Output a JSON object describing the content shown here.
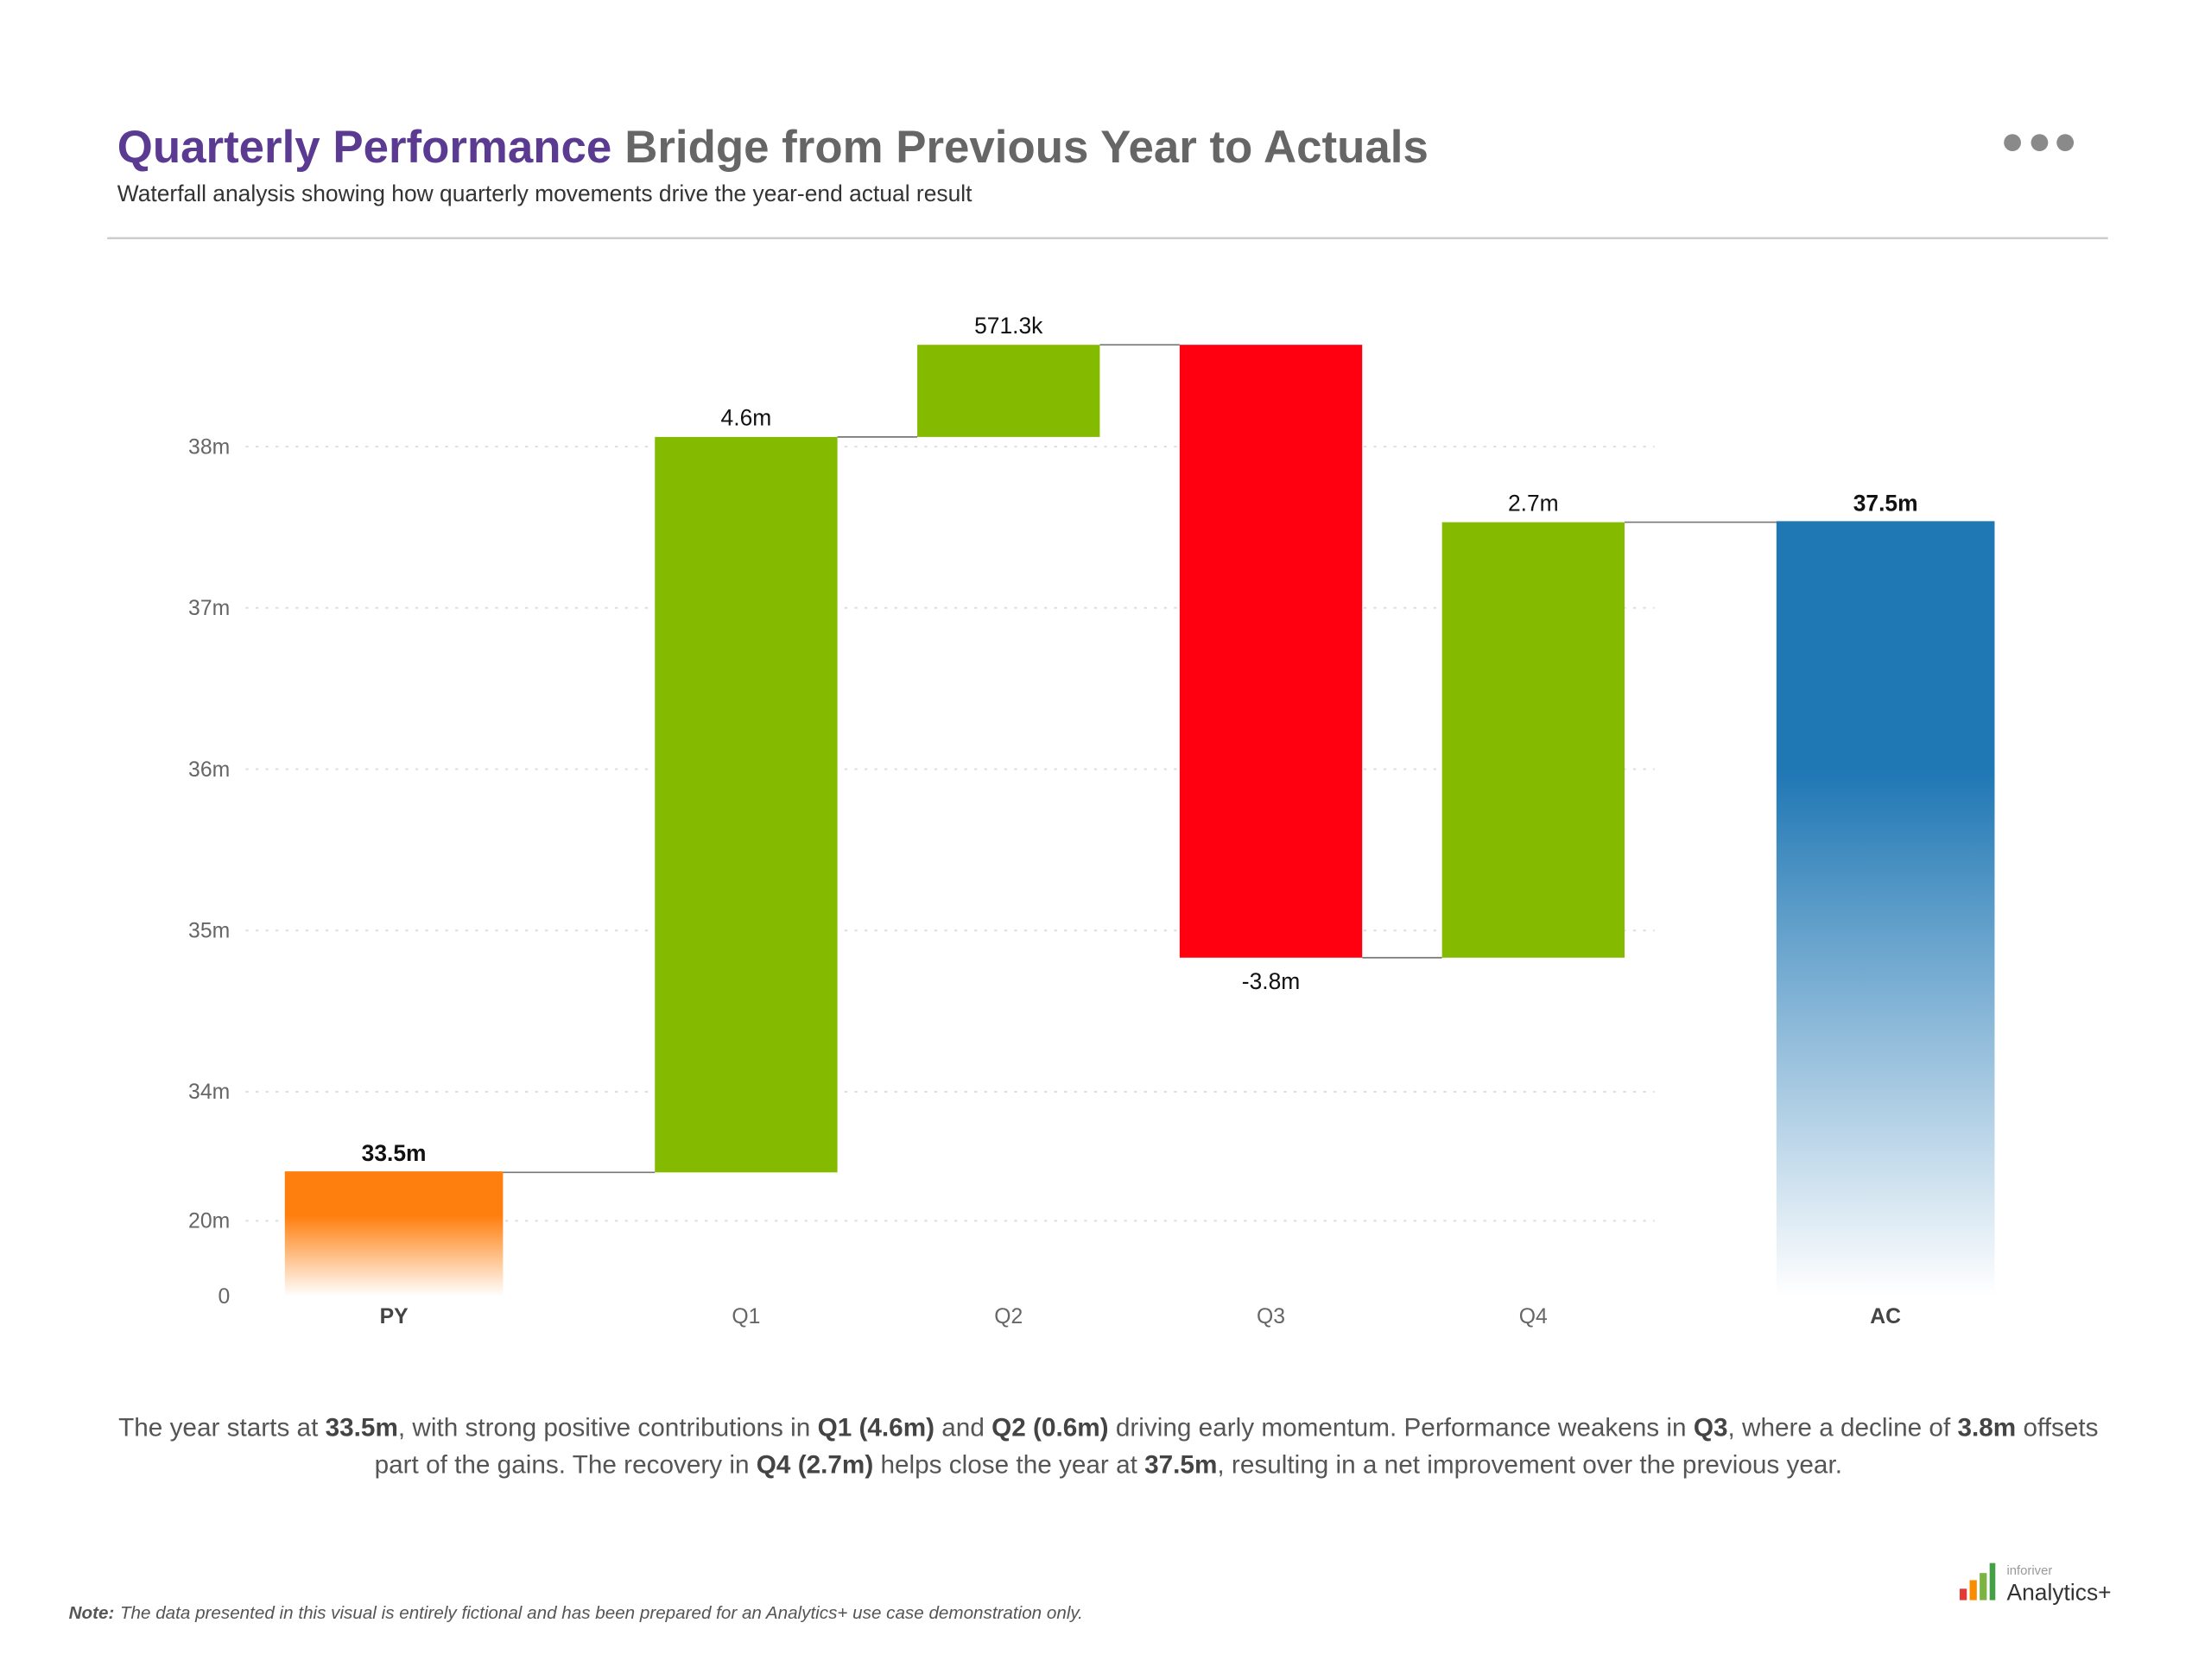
{
  "header": {
    "title_highlight": "Quarterly Performance",
    "title_rest": "Bridge from Previous Year to Actuals",
    "subtitle": "Waterfall analysis showing how quarterly movements drive the year-end actual result"
  },
  "chart_data": {
    "type": "waterfall",
    "categories": [
      "PY",
      "Q1",
      "Q2",
      "Q3",
      "Q4",
      "AC"
    ],
    "values": [
      33500000,
      4560000,
      571300,
      -3800000,
      2700000,
      37531300
    ],
    "value_labels": [
      "33.5m",
      "4.6m",
      "571.3k",
      "-3.8m",
      "2.7m",
      "37.5m"
    ],
    "colors": {
      "start": "#ff7f0e",
      "increase": "#84bb00",
      "decrease": "#ff0011",
      "end": "#1f77b4"
    },
    "ylim": [
      0,
      38700000
    ],
    "axis_break": [
      20000000,
      33200000
    ],
    "yticks": [
      {
        "value": 0,
        "label": "0"
      },
      {
        "value": 20000000,
        "label": "20m"
      },
      {
        "value": 34000000,
        "label": "34m"
      },
      {
        "value": 35000000,
        "label": "35m"
      },
      {
        "value": 36000000,
        "label": "36m"
      },
      {
        "value": 37000000,
        "label": "37m"
      },
      {
        "value": 38000000,
        "label": "38m"
      }
    ],
    "grid": true
  },
  "narrative": [
    {
      "text": "The year starts at ",
      "bold": false
    },
    {
      "text": "33.5m",
      "bold": true
    },
    {
      "text": ", with strong positive contributions in ",
      "bold": false
    },
    {
      "text": "Q1 (4.6m)",
      "bold": true
    },
    {
      "text": " and ",
      "bold": false
    },
    {
      "text": "Q2 (0.6m)",
      "bold": true
    },
    {
      "text": " driving early momentum. Performance weakens in ",
      "bold": false
    },
    {
      "text": "Q3",
      "bold": true
    },
    {
      "text": ", where a decline of ",
      "bold": false
    },
    {
      "text": "3.8m",
      "bold": true
    },
    {
      "text": " offsets part of the gains. The recovery in ",
      "bold": false
    },
    {
      "text": "Q4 (2.7m)",
      "bold": true
    },
    {
      "text": " helps close the year at ",
      "bold": false
    },
    {
      "text": "37.5m",
      "bold": true
    },
    {
      "text": ", resulting in a net improvement over the previous year.",
      "bold": false
    }
  ],
  "note": {
    "label": "Note:",
    "text": "The data presented in this visual is entirely fictional and has been prepared for an Analytics+ use case demonstration only."
  },
  "logo": {
    "brand": "inforiver",
    "product": "Analytics+"
  }
}
